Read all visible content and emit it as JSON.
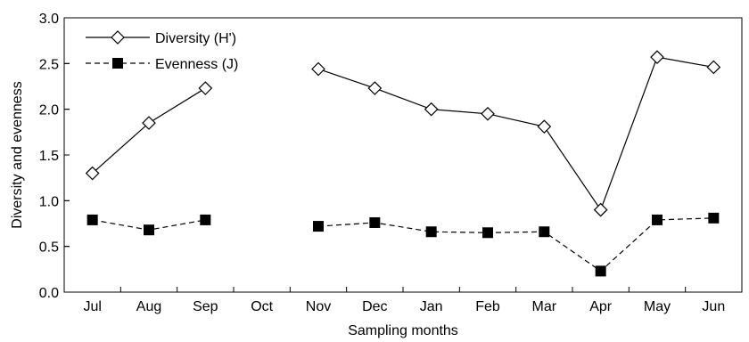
{
  "chart_data": {
    "type": "line",
    "xlabel": "Sampling months",
    "ylabel": "Diversity and evenness",
    "categories": [
      "Jul",
      "Aug",
      "Sep",
      "Oct",
      "Nov",
      "Dec",
      "Jan",
      "Feb",
      "Mar",
      "Apr",
      "May",
      "Jun"
    ],
    "ylim": [
      0.0,
      3.0
    ],
    "yticks": [
      "0.0",
      "0.5",
      "1.0",
      "1.5",
      "2.0",
      "2.5",
      "3.0"
    ],
    "grid": false,
    "legend_position": "top-left",
    "series": [
      {
        "name": "Diversity (H')",
        "marker": "open-diamond",
        "line": "solid",
        "color": "#000000",
        "values": [
          1.3,
          1.85,
          2.23,
          null,
          2.44,
          2.23,
          2.0,
          1.95,
          1.81,
          0.9,
          2.57,
          2.46
        ]
      },
      {
        "name": "Evenness (J)",
        "marker": "filled-square",
        "line": "dashed",
        "color": "#000000",
        "values": [
          0.79,
          0.68,
          0.79,
          null,
          0.72,
          0.76,
          0.66,
          0.65,
          0.66,
          0.23,
          0.79,
          0.81
        ]
      }
    ]
  }
}
